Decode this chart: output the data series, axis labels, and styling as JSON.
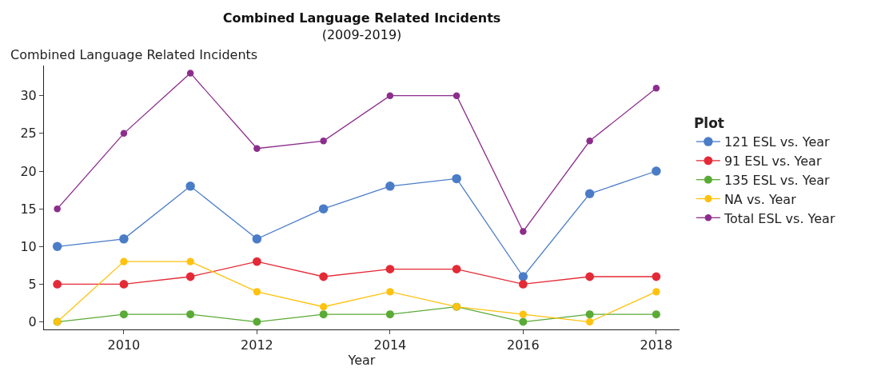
{
  "chart_data": {
    "type": "line",
    "title": "Combined Language Related Incidents",
    "subtitle": "(2009-2019)",
    "xlabel": "Year",
    "ylabel": "Combined Language Related Incidents",
    "legend_title": "Plot",
    "x": [
      2009,
      2010,
      2011,
      2012,
      2013,
      2014,
      2015,
      2016,
      2017,
      2018
    ],
    "series": [
      {
        "name": "121 ESL vs. Year",
        "color": "#4a7cc7",
        "values": [
          10,
          11,
          18,
          11,
          15,
          18,
          19,
          6,
          17,
          20
        ]
      },
      {
        "name": "91 ESL vs. Year",
        "color": "#e42a36",
        "values": [
          5,
          5,
          6,
          8,
          6,
          7,
          7,
          5,
          6,
          6
        ]
      },
      {
        "name": "135 ESL vs. Year",
        "color": "#5aaa36",
        "values": [
          0,
          1,
          1,
          0,
          1,
          1,
          2,
          0,
          1,
          1
        ]
      },
      {
        "name": "NA vs. Year",
        "color": "#ffc20e",
        "values": [
          0,
          8,
          8,
          4,
          2,
          4,
          2,
          1,
          0,
          4
        ]
      },
      {
        "name": "Total ESL vs. Year",
        "color": "#8c2d8c",
        "values": [
          15,
          25,
          33,
          23,
          24,
          30,
          30,
          12,
          24,
          31
        ]
      }
    ],
    "xlim": [
      2008.8,
      2018.35
    ],
    "xticks": [
      2010,
      2012,
      2014,
      2016,
      2018
    ],
    "ylim": [
      -1,
      34
    ],
    "yticks": [
      0,
      5,
      10,
      15,
      20,
      25,
      30
    ],
    "grid": false,
    "legend": "right",
    "marker": "circle",
    "line_style": "solid"
  }
}
